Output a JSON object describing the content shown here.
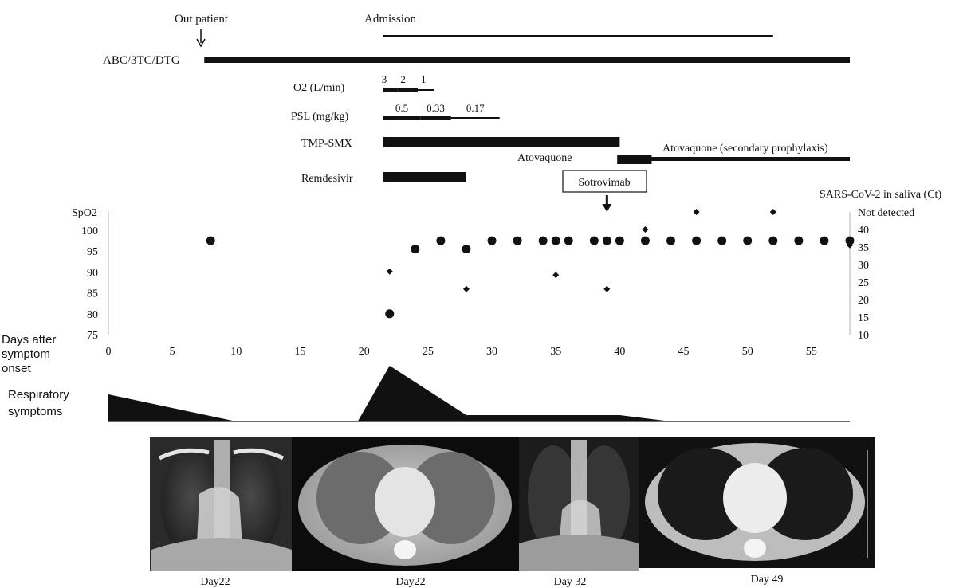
{
  "timeline": {
    "outpatient_label": "Out patient",
    "admission_label": "Admission",
    "drugs": [
      {
        "label": "ABC/3TC/DTG",
        "start": 7.5,
        "end": 58
      },
      {
        "label": "TMP-SMX",
        "start": 21.5,
        "end": 40
      },
      {
        "label": "Remdesivir",
        "start": 21.5,
        "end": 28
      },
      {
        "label": "Atovaquone",
        "start": 39.8,
        "end": 42.5
      },
      {
        "label": "Atovaquone (secondary prophylaxis)",
        "start": 42.5,
        "end": 58
      }
    ],
    "admission": {
      "start": 21.5,
      "end": 52
    },
    "o2": {
      "label": "O2 (L/min)",
      "segments": [
        {
          "value": "3",
          "start": 21.5,
          "end": 22.6
        },
        {
          "value": "2",
          "start": 22.6,
          "end": 24.2
        },
        {
          "value": "1",
          "start": 24.2,
          "end": 25.5
        }
      ]
    },
    "psl": {
      "label": "PSL (mg/kg)",
      "segments": [
        {
          "value": "0.5",
          "start": 21.5,
          "end": 24.4
        },
        {
          "value": "0.33",
          "start": 24.4,
          "end": 26.8
        },
        {
          "value": "0.17",
          "start": 26.8,
          "end": 30.6
        }
      ]
    },
    "sotrovimab": {
      "label": "Sotrovimab",
      "day": 39
    }
  },
  "chart_data": {
    "type": "scatter",
    "xlabel": "Days after symptom onset",
    "ylabel_left": "SpO2",
    "ylabel_right": "SARS-CoV-2 in saliva (Ct)",
    "xlim": [
      0,
      58
    ],
    "xticks": [
      0,
      5,
      10,
      15,
      20,
      25,
      30,
      35,
      40,
      45,
      50,
      55
    ],
    "ylim_left": [
      75,
      100
    ],
    "yticks_left": [
      75,
      80,
      85,
      90,
      95,
      100
    ],
    "ylim_right": [
      10,
      45
    ],
    "yticks_right": [
      "10",
      "15",
      "20",
      "25",
      "30",
      "35",
      "40",
      "Not detected"
    ],
    "series": [
      {
        "name": "SpO2",
        "marker": "circle",
        "points": [
          [
            8,
            97.5
          ],
          [
            22,
            80
          ],
          [
            24,
            95.5
          ],
          [
            26,
            97.5
          ],
          [
            28,
            95.5
          ],
          [
            30,
            97.5
          ],
          [
            32,
            97.5
          ],
          [
            34,
            97.5
          ],
          [
            35,
            97.5
          ],
          [
            36,
            97.5
          ],
          [
            38,
            97.5
          ],
          [
            39,
            97.5
          ],
          [
            40,
            97.5
          ],
          [
            42,
            97.5
          ],
          [
            44,
            97.5
          ],
          [
            46,
            97.5
          ],
          [
            48,
            97.5
          ],
          [
            50,
            97.5
          ],
          [
            52,
            97.5
          ],
          [
            54,
            97.5
          ],
          [
            56,
            97.5
          ],
          [
            58,
            97.5
          ]
        ]
      },
      {
        "name": "SARS-CoV-2 in saliva (Ct)",
        "marker": "diamond",
        "points": [
          [
            22,
            28
          ],
          [
            28,
            23
          ],
          [
            35,
            27
          ],
          [
            39,
            23
          ],
          [
            42,
            40
          ],
          [
            46,
            45
          ],
          [
            52,
            45
          ],
          [
            58,
            35.5
          ]
        ]
      }
    ],
    "respiratory_symptoms": {
      "label": "Respiratory symptoms",
      "profile": [
        [
          0,
          0.85
        ],
        [
          10,
          0
        ],
        [
          19.5,
          0
        ],
        [
          22,
          1.75
        ],
        [
          28,
          0.2
        ],
        [
          40,
          0.2
        ],
        [
          44,
          0
        ],
        [
          58,
          0
        ]
      ]
    }
  },
  "images": [
    {
      "caption": "Day22",
      "kind": "chest x-ray"
    },
    {
      "caption": "Day22",
      "kind": "chest CT"
    },
    {
      "caption": "Day 32",
      "kind": "chest x-ray"
    },
    {
      "caption": "Day 49",
      "kind": "chest CT"
    }
  ],
  "colors": {
    "ink": "#111111",
    "grid": "#b0b0b0"
  }
}
